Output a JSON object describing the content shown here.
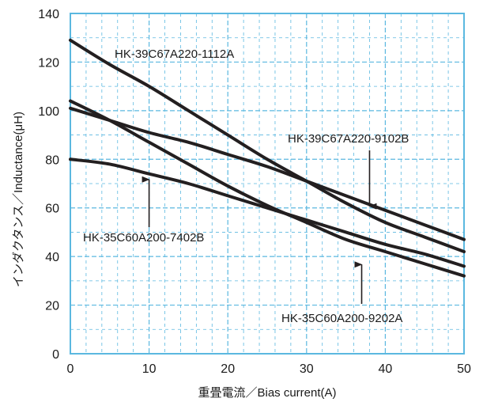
{
  "chart_data": {
    "type": "line",
    "xlabel": "重畳電流／Bias current(A)",
    "ylabel": "インダクタンス／Inductance(μH)",
    "xlim": [
      0,
      50
    ],
    "ylim": [
      0,
      140
    ],
    "xticks": [
      0,
      10,
      20,
      30,
      40,
      50
    ],
    "yticks": [
      0,
      20,
      40,
      60,
      80,
      100,
      120,
      140
    ],
    "x_tick_labels": [
      "0",
      "10",
      "20",
      "30",
      "40",
      "50"
    ],
    "y_tick_labels": [
      "0",
      "20",
      "40",
      "60",
      "80",
      "100",
      "120",
      "140"
    ],
    "grid": "dashed",
    "frame_color": "#5bb8e0",
    "grid_color": "#5bb8e0",
    "line_color": "#231f20",
    "series": [
      {
        "name": "HK-39C67A220-1112A",
        "x": [
          0,
          5,
          10,
          15,
          20,
          25,
          30,
          35,
          40,
          45,
          50
        ],
        "y": [
          129,
          119,
          110,
          100,
          90,
          80,
          71,
          62,
          54,
          48,
          42
        ]
      },
      {
        "name": "HK-39C67A220-9102B",
        "x": [
          0,
          5,
          10,
          15,
          20,
          25,
          30,
          35,
          40,
          45,
          50
        ],
        "y": [
          101,
          96,
          91,
          87,
          82,
          77,
          71,
          65,
          59,
          53,
          47
        ]
      },
      {
        "name": "HK-35C60A200-9202A",
        "x": [
          0,
          5,
          10,
          15,
          20,
          25,
          30,
          35,
          40,
          45,
          50
        ],
        "y": [
          104,
          96,
          87,
          78,
          69,
          61,
          54,
          47,
          42,
          37,
          32
        ]
      },
      {
        "name": "HK-35C60A200-7402B",
        "x": [
          0,
          5,
          10,
          15,
          20,
          25,
          30,
          35,
          40,
          45,
          50
        ],
        "y": [
          80,
          78,
          74,
          70,
          65,
          60,
          55,
          50,
          45,
          41,
          36
        ]
      }
    ],
    "annotations": [
      {
        "text": "HK-39C67A220-1112A",
        "points_to_series": 0
      },
      {
        "text": "HK-39C67A220-9102B",
        "points_to_series": 1,
        "arrow_at": [
          38,
          60
        ]
      },
      {
        "text": "HK-35C60A200-7402B",
        "points_to_series": 3,
        "arrow_at": [
          10,
          73
        ]
      },
      {
        "text": "HK-35C60A200-9202A",
        "points_to_series": 2,
        "arrow_at": [
          37,
          38
        ]
      }
    ]
  }
}
